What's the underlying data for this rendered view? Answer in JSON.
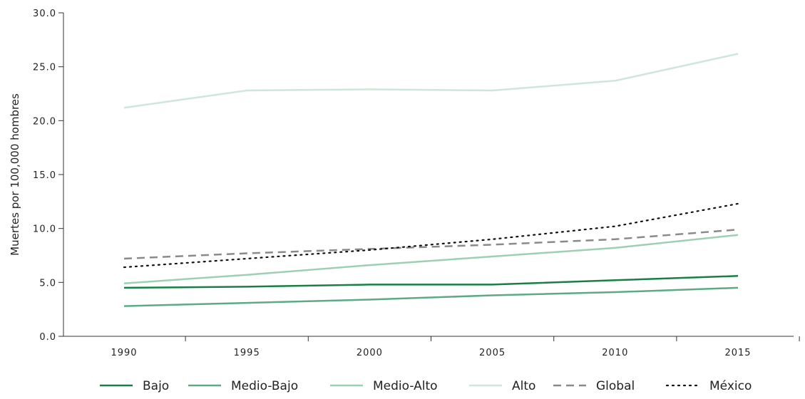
{
  "chart_data": {
    "type": "line",
    "title": "",
    "xlabel": "",
    "ylabel": "Muertes por 100,000 hombres",
    "x": [
      "1990",
      "1995",
      "2000",
      "2005",
      "2010",
      "2015"
    ],
    "y_ticks": [
      "0.0",
      "5.0",
      "10.0",
      "15.0",
      "20.0",
      "25.0",
      "30.0"
    ],
    "ylim": [
      0,
      30
    ],
    "grid": false,
    "legend_position": "bottom",
    "series": [
      {
        "name": "Bajo",
        "values": [
          4.5,
          4.6,
          4.8,
          4.8,
          5.2,
          5.6
        ],
        "color": "#1a7f45",
        "dash": "solid"
      },
      {
        "name": "Medio-Bajo",
        "values": [
          2.8,
          3.1,
          3.4,
          3.8,
          4.1,
          4.5
        ],
        "color": "#5daa85",
        "dash": "solid"
      },
      {
        "name": "Medio-Alto",
        "values": [
          4.9,
          5.7,
          6.6,
          7.4,
          8.2,
          9.4
        ],
        "color": "#9ecfb4",
        "dash": "solid"
      },
      {
        "name": "Alto",
        "values": [
          21.2,
          22.8,
          22.9,
          22.8,
          23.7,
          26.2
        ],
        "color": "#cfe6da",
        "dash": "solid"
      },
      {
        "name": "Global",
        "values": [
          7.2,
          7.7,
          8.1,
          8.5,
          9.0,
          9.9
        ],
        "color": "#8a8a8a",
        "dash": "dashed"
      },
      {
        "name": "México",
        "values": [
          6.4,
          7.2,
          8.0,
          9.0,
          10.2,
          12.3
        ],
        "color": "#111111",
        "dash": "dotted"
      }
    ]
  }
}
